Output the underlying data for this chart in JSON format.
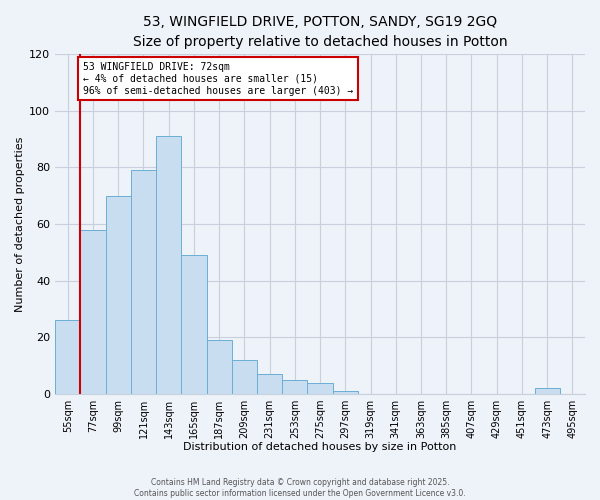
{
  "title": "53, WINGFIELD DRIVE, POTTON, SANDY, SG19 2GQ",
  "subtitle": "Size of property relative to detached houses in Potton",
  "xlabel": "Distribution of detached houses by size in Potton",
  "ylabel": "Number of detached properties",
  "bar_labels": [
    "55sqm",
    "77sqm",
    "99sqm",
    "121sqm",
    "143sqm",
    "165sqm",
    "187sqm",
    "209sqm",
    "231sqm",
    "253sqm",
    "275sqm",
    "297sqm",
    "319sqm",
    "341sqm",
    "363sqm",
    "385sqm",
    "407sqm",
    "429sqm",
    "451sqm",
    "473sqm",
    "495sqm"
  ],
  "bar_values": [
    26,
    58,
    70,
    79,
    91,
    49,
    19,
    12,
    7,
    5,
    4,
    1,
    0,
    0,
    0,
    0,
    0,
    0,
    0,
    2,
    0
  ],
  "bar_color": "#c9ddf0",
  "bar_edge_color": "#6baed6",
  "property_line_label": "53 WINGFIELD DRIVE: 72sqm",
  "annotation_line1": "← 4% of detached houses are smaller (15)",
  "annotation_line2": "96% of semi-detached houses are larger (403) →",
  "annotation_box_facecolor": "#ffffff",
  "annotation_box_edgecolor": "#cc0000",
  "vline_color": "#cc0000",
  "ylim": [
    0,
    120
  ],
  "yticks": [
    0,
    20,
    40,
    60,
    80,
    100,
    120
  ],
  "footer1": "Contains HM Land Registry data © Crown copyright and database right 2025.",
  "footer2": "Contains public sector information licensed under the Open Government Licence v3.0.",
  "title_fontsize": 10,
  "subtitle_fontsize": 9,
  "bg_color": "#eef2f9",
  "grid_color": "#c8d0de"
}
